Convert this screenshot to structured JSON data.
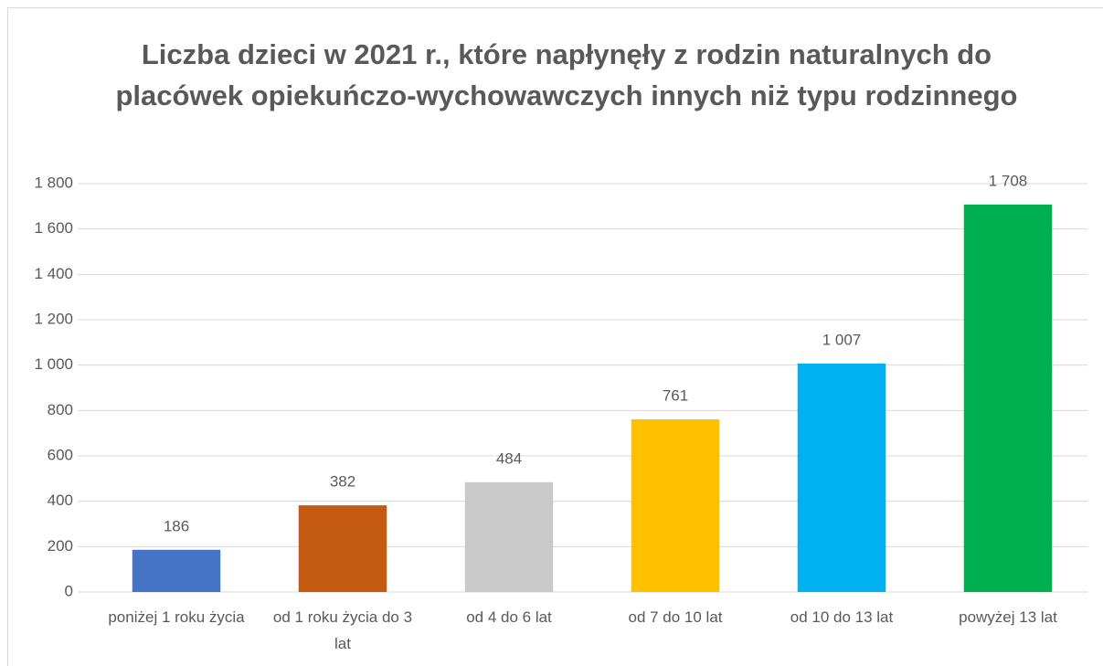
{
  "chart_data": {
    "type": "bar",
    "title": "Liczba dzieci w 2021 r., które napłynęły z rodzin naturalnych do placówek opiekuńczo-wychowawczych innych niż typu rodzinnego",
    "categories": [
      "poniżej 1 roku życia",
      "od 1 roku życia do 3 lat",
      "od 4 do 6 lat",
      "od 7 do 10 lat",
      "od 10 do 13 lat",
      "powyżej 13 lat"
    ],
    "values": [
      186,
      382,
      484,
      761,
      1007,
      1708
    ],
    "value_labels": [
      "186",
      "382",
      "484",
      "761",
      "1 007",
      "1 708"
    ],
    "colors": [
      "#4472c4",
      "#c55a11",
      "#c9c9c9",
      "#ffc000",
      "#00b0f0",
      "#00b050"
    ],
    "ylim": [
      0,
      1800
    ],
    "yticks": [
      0,
      200,
      400,
      600,
      800,
      {
        "value": 1000,
        "label": "1 000"
      },
      {
        "value": 1200,
        "label": "1 200"
      },
      {
        "value": 1400,
        "label": "1 400"
      },
      {
        "value": 1600,
        "label": "1 600"
      },
      {
        "value": 1800,
        "label": "1 800"
      }
    ],
    "grid": true
  }
}
